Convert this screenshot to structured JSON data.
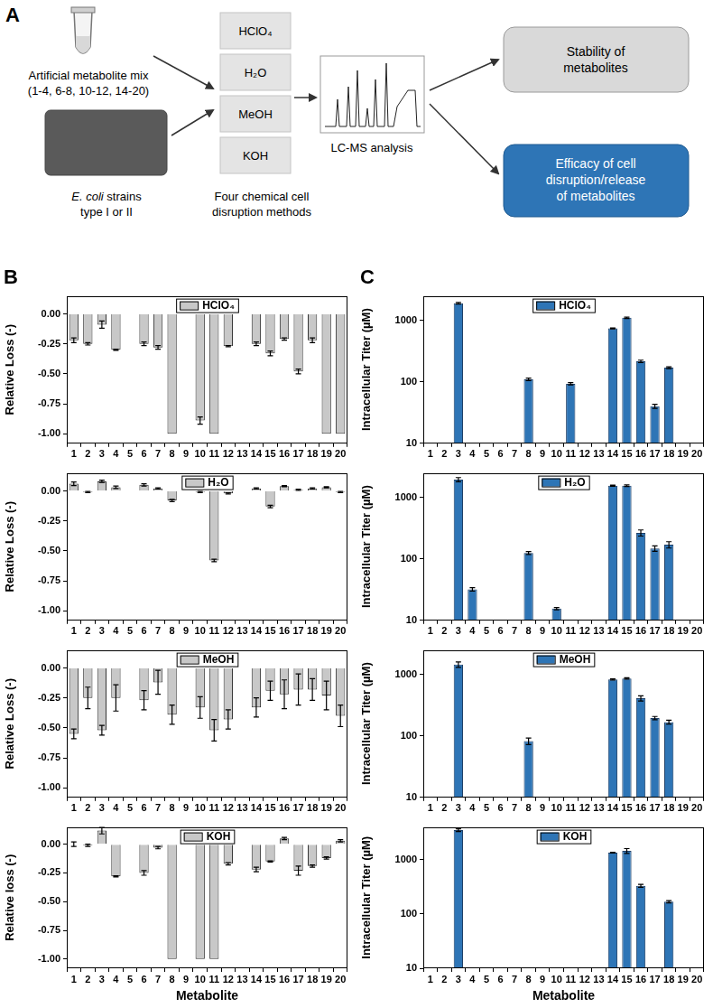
{
  "diagram": {
    "panel_label": "A",
    "metabolite_mix": [
      "Artificial metabolite mix",
      "(1-4, 6-8, 10-12, 14-20)"
    ],
    "strains": {
      "italic": "E. coli",
      "rest": " strains",
      "line2": "type I or II"
    },
    "methods": [
      "HClO₄",
      "H₂O",
      "MeOH",
      "KOH"
    ],
    "methods_caption": [
      "Four chemical cell",
      "disruption methods"
    ],
    "analysis": "LC-MS analysis",
    "outcome_1": [
      "Stability of",
      "metabolites"
    ],
    "outcome_2": [
      "Efficacy of cell",
      "disruption/release",
      "of metabolites"
    ]
  },
  "chart_data": [
    {
      "type": "bar",
      "panel_label": "B",
      "categories": [
        "1",
        "2",
        "3",
        "4",
        "5",
        "6",
        "7",
        "8",
        "9",
        "10",
        "11",
        "12",
        "13",
        "14",
        "15",
        "16",
        "17",
        "18",
        "19",
        "20"
      ],
      "series": [
        {
          "name": "HClO₄",
          "color": "#c8c8c8",
          "values": [
            -0.22,
            -0.25,
            -0.09,
            -0.3,
            null,
            -0.25,
            -0.28,
            -1,
            null,
            -0.89,
            -1,
            -0.27,
            null,
            -0.25,
            -0.33,
            -0.21,
            -0.48,
            -0.22,
            -1,
            -1
          ],
          "errors": [
            0.02,
            0.01,
            0.03,
            0.005,
            null,
            0.015,
            0.015,
            0,
            null,
            0.03,
            0,
            0.005,
            null,
            0.015,
            0.02,
            0.01,
            0.02,
            0.02,
            0,
            0
          ]
        }
      ],
      "y_label": "Relative Loss (-)",
      "ylim": [
        -1.08,
        0.15
      ],
      "yticks": [
        {
          "value": -1,
          "label": "-1.00"
        },
        {
          "value": -0.75,
          "label": "-0.75"
        },
        {
          "value": -0.5,
          "label": "-0.50"
        },
        {
          "value": -0.25,
          "label": "-0.25"
        },
        {
          "value": 0,
          "label": "0.00"
        }
      ],
      "legend": "top"
    },
    {
      "type": "bar",
      "categories": [
        "1",
        "2",
        "3",
        "4",
        "5",
        "6",
        "7",
        "8",
        "9",
        "10",
        "11",
        "12",
        "13",
        "14",
        "15",
        "16",
        "17",
        "18",
        "19",
        "20"
      ],
      "series": [
        {
          "name": "H₂O",
          "color": "#c8c8c8",
          "values": [
            0.06,
            -0.01,
            0.08,
            0.03,
            null,
            0.05,
            0.02,
            -0.08,
            null,
            -0.01,
            -0.58,
            -0.02,
            null,
            0.02,
            -0.13,
            0.04,
            0.01,
            0.02,
            0.03,
            -0.01
          ],
          "errors": [
            0.015,
            0.005,
            0.01,
            0.01,
            null,
            0.01,
            0.005,
            0.01,
            null,
            0.005,
            0.01,
            0.005,
            null,
            0.005,
            0.01,
            0.005,
            0.005,
            0.005,
            0.005,
            0.005
          ]
        }
      ],
      "y_label": "Relative Loss (-)",
      "ylim": [
        -1.08,
        0.15
      ],
      "yticks": [
        {
          "value": -1,
          "label": "-1.00"
        },
        {
          "value": -0.75,
          "label": "-0.75"
        },
        {
          "value": -0.5,
          "label": "-0.50"
        },
        {
          "value": -0.25,
          "label": "-0.25"
        },
        {
          "value": 0,
          "label": "0.00"
        }
      ],
      "legend": "top"
    },
    {
      "type": "bar",
      "categories": [
        "1",
        "2",
        "3",
        "4",
        "5",
        "6",
        "7",
        "8",
        "9",
        "10",
        "11",
        "12",
        "13",
        "14",
        "15",
        "16",
        "17",
        "18",
        "19",
        "20"
      ],
      "series": [
        {
          "name": "MeOH",
          "color": "#c8c8c8",
          "values": [
            -0.55,
            -0.25,
            -0.52,
            -0.25,
            null,
            -0.27,
            -0.12,
            -0.39,
            null,
            -0.33,
            -0.52,
            -0.43,
            null,
            -0.33,
            -0.19,
            -0.22,
            -0.18,
            -0.18,
            -0.23,
            -0.4
          ],
          "errors": [
            0.04,
            0.09,
            0.04,
            0.11,
            null,
            0.08,
            0.1,
            0.08,
            null,
            0.09,
            0.09,
            0.08,
            null,
            0.08,
            0.08,
            0.12,
            0.13,
            0.09,
            0.12,
            0.09
          ]
        }
      ],
      "y_label": "Relative Loss (-)",
      "ylim": [
        -1.08,
        0.15
      ],
      "yticks": [
        {
          "value": -1,
          "label": "-1.00"
        },
        {
          "value": -0.75,
          "label": "-0.75"
        },
        {
          "value": -0.5,
          "label": "-0.50"
        },
        {
          "value": -0.25,
          "label": "-0.25"
        },
        {
          "value": 0,
          "label": "0.00"
        }
      ],
      "legend": "top"
    },
    {
      "type": "bar",
      "categories": [
        "1",
        "2",
        "3",
        "4",
        "5",
        "6",
        "7",
        "8",
        "9",
        "10",
        "11",
        "12",
        "13",
        "14",
        "15",
        "16",
        "17",
        "18",
        "19",
        "20"
      ],
      "series": [
        {
          "name": "KOH",
          "color": "#c8c8c8",
          "values": [
            0,
            -0.01,
            0.12,
            -0.28,
            null,
            -0.25,
            -0.03,
            -1,
            null,
            -1,
            -1,
            -0.17,
            null,
            -0.22,
            -0.15,
            0.05,
            -0.23,
            -0.19,
            -0.12,
            0.03
          ],
          "errors": [
            0.02,
            0.01,
            0.03,
            0.005,
            null,
            0.02,
            0.01,
            0,
            null,
            0,
            0,
            0.01,
            null,
            0.02,
            0.005,
            0.01,
            0.04,
            0.01,
            0.01,
            0.01
          ]
        }
      ],
      "y_label": "Relative loss (-)",
      "x_label": "Metabolite",
      "ylim": [
        -1.08,
        0.15
      ],
      "yticks": [
        {
          "value": -1,
          "label": "-1.00"
        },
        {
          "value": -0.75,
          "label": "-0.75"
        },
        {
          "value": -0.5,
          "label": "-0.50"
        },
        {
          "value": -0.25,
          "label": "-0.25"
        },
        {
          "value": 0,
          "label": "0.00"
        }
      ],
      "legend": "top"
    },
    {
      "type": "bar",
      "panel_label": "C",
      "log": "y",
      "categories": [
        "1",
        "2",
        "3",
        "4",
        "5",
        "6",
        "7",
        "8",
        "9",
        "10",
        "11",
        "12",
        "13",
        "14",
        "15",
        "16",
        "17",
        "18",
        "19",
        "20"
      ],
      "series": [
        {
          "name": "HClO₄",
          "color": "#2e75b6",
          "values": [
            null,
            null,
            1900,
            null,
            null,
            null,
            null,
            110,
            null,
            null,
            93,
            null,
            null,
            740,
            1100,
            215,
            40,
            170,
            null,
            null
          ],
          "errors": [
            null,
            null,
            60,
            null,
            null,
            null,
            null,
            5,
            null,
            null,
            4,
            null,
            null,
            15,
            30,
            10,
            3,
            6,
            null,
            null
          ]
        }
      ],
      "y_label": "Intracellular Titer (µM)",
      "ylim": [
        10,
        2500
      ],
      "yticks": [
        10,
        100,
        1000
      ],
      "legend": "top"
    },
    {
      "type": "bar",
      "log": "y",
      "categories": [
        "1",
        "2",
        "3",
        "4",
        "5",
        "6",
        "7",
        "8",
        "9",
        "10",
        "11",
        "12",
        "13",
        "14",
        "15",
        "16",
        "17",
        "18",
        "19",
        "20"
      ],
      "series": [
        {
          "name": "H₂O",
          "color": "#2e75b6",
          "values": [
            null,
            null,
            1950,
            32,
            null,
            null,
            null,
            125,
            null,
            15.5,
            null,
            null,
            null,
            1550,
            1550,
            265,
            148,
            170,
            null,
            null
          ],
          "errors": [
            null,
            null,
            150,
            2,
            null,
            null,
            null,
            7,
            null,
            0.7,
            null,
            null,
            null,
            30,
            50,
            30,
            15,
            20,
            null,
            null
          ]
        }
      ],
      "y_label": "Intracellular Titer (µM)",
      "ylim": [
        10,
        2500
      ],
      "yticks": [
        10,
        100,
        1000
      ],
      "legend": "top"
    },
    {
      "type": "bar",
      "log": "y",
      "categories": [
        "1",
        "2",
        "3",
        "4",
        "5",
        "6",
        "7",
        "8",
        "9",
        "10",
        "11",
        "12",
        "13",
        "14",
        "15",
        "16",
        "17",
        "18",
        "19",
        "20"
      ],
      "series": [
        {
          "name": "MeOH",
          "color": "#2e75b6",
          "values": [
            null,
            null,
            1450,
            null,
            null,
            null,
            null,
            82,
            null,
            null,
            null,
            null,
            null,
            830,
            860,
            410,
            195,
            168,
            null,
            null
          ],
          "errors": [
            null,
            null,
            150,
            null,
            null,
            null,
            null,
            10,
            null,
            null,
            null,
            null,
            null,
            20,
            20,
            40,
            12,
            12,
            null,
            null
          ]
        }
      ],
      "y_label": "Intracellular Titer (µM)",
      "ylim": [
        10,
        2500
      ],
      "yticks": [
        10,
        100,
        1000
      ],
      "legend": "top"
    },
    {
      "type": "bar",
      "log": "y",
      "categories": [
        "1",
        "2",
        "3",
        "4",
        "5",
        "6",
        "7",
        "8",
        "9",
        "10",
        "11",
        "12",
        "13",
        "14",
        "15",
        "16",
        "17",
        "18",
        "19",
        "20"
      ],
      "series": [
        {
          "name": "KOH",
          "color": "#2e75b6",
          "values": [
            null,
            null,
            3500,
            null,
            null,
            null,
            null,
            null,
            null,
            null,
            null,
            null,
            null,
            1350,
            1450,
            330,
            null,
            168,
            null,
            null
          ],
          "errors": [
            null,
            null,
            200,
            null,
            null,
            null,
            null,
            null,
            null,
            null,
            null,
            null,
            null,
            20,
            150,
            20,
            null,
            8,
            null,
            null
          ]
        }
      ],
      "y_label": "Intracellular Titer (µM)",
      "x_label": "Metabolite",
      "ylim": [
        10,
        4000
      ],
      "yticks": [
        10,
        100,
        1000
      ],
      "legend": "top"
    }
  ]
}
